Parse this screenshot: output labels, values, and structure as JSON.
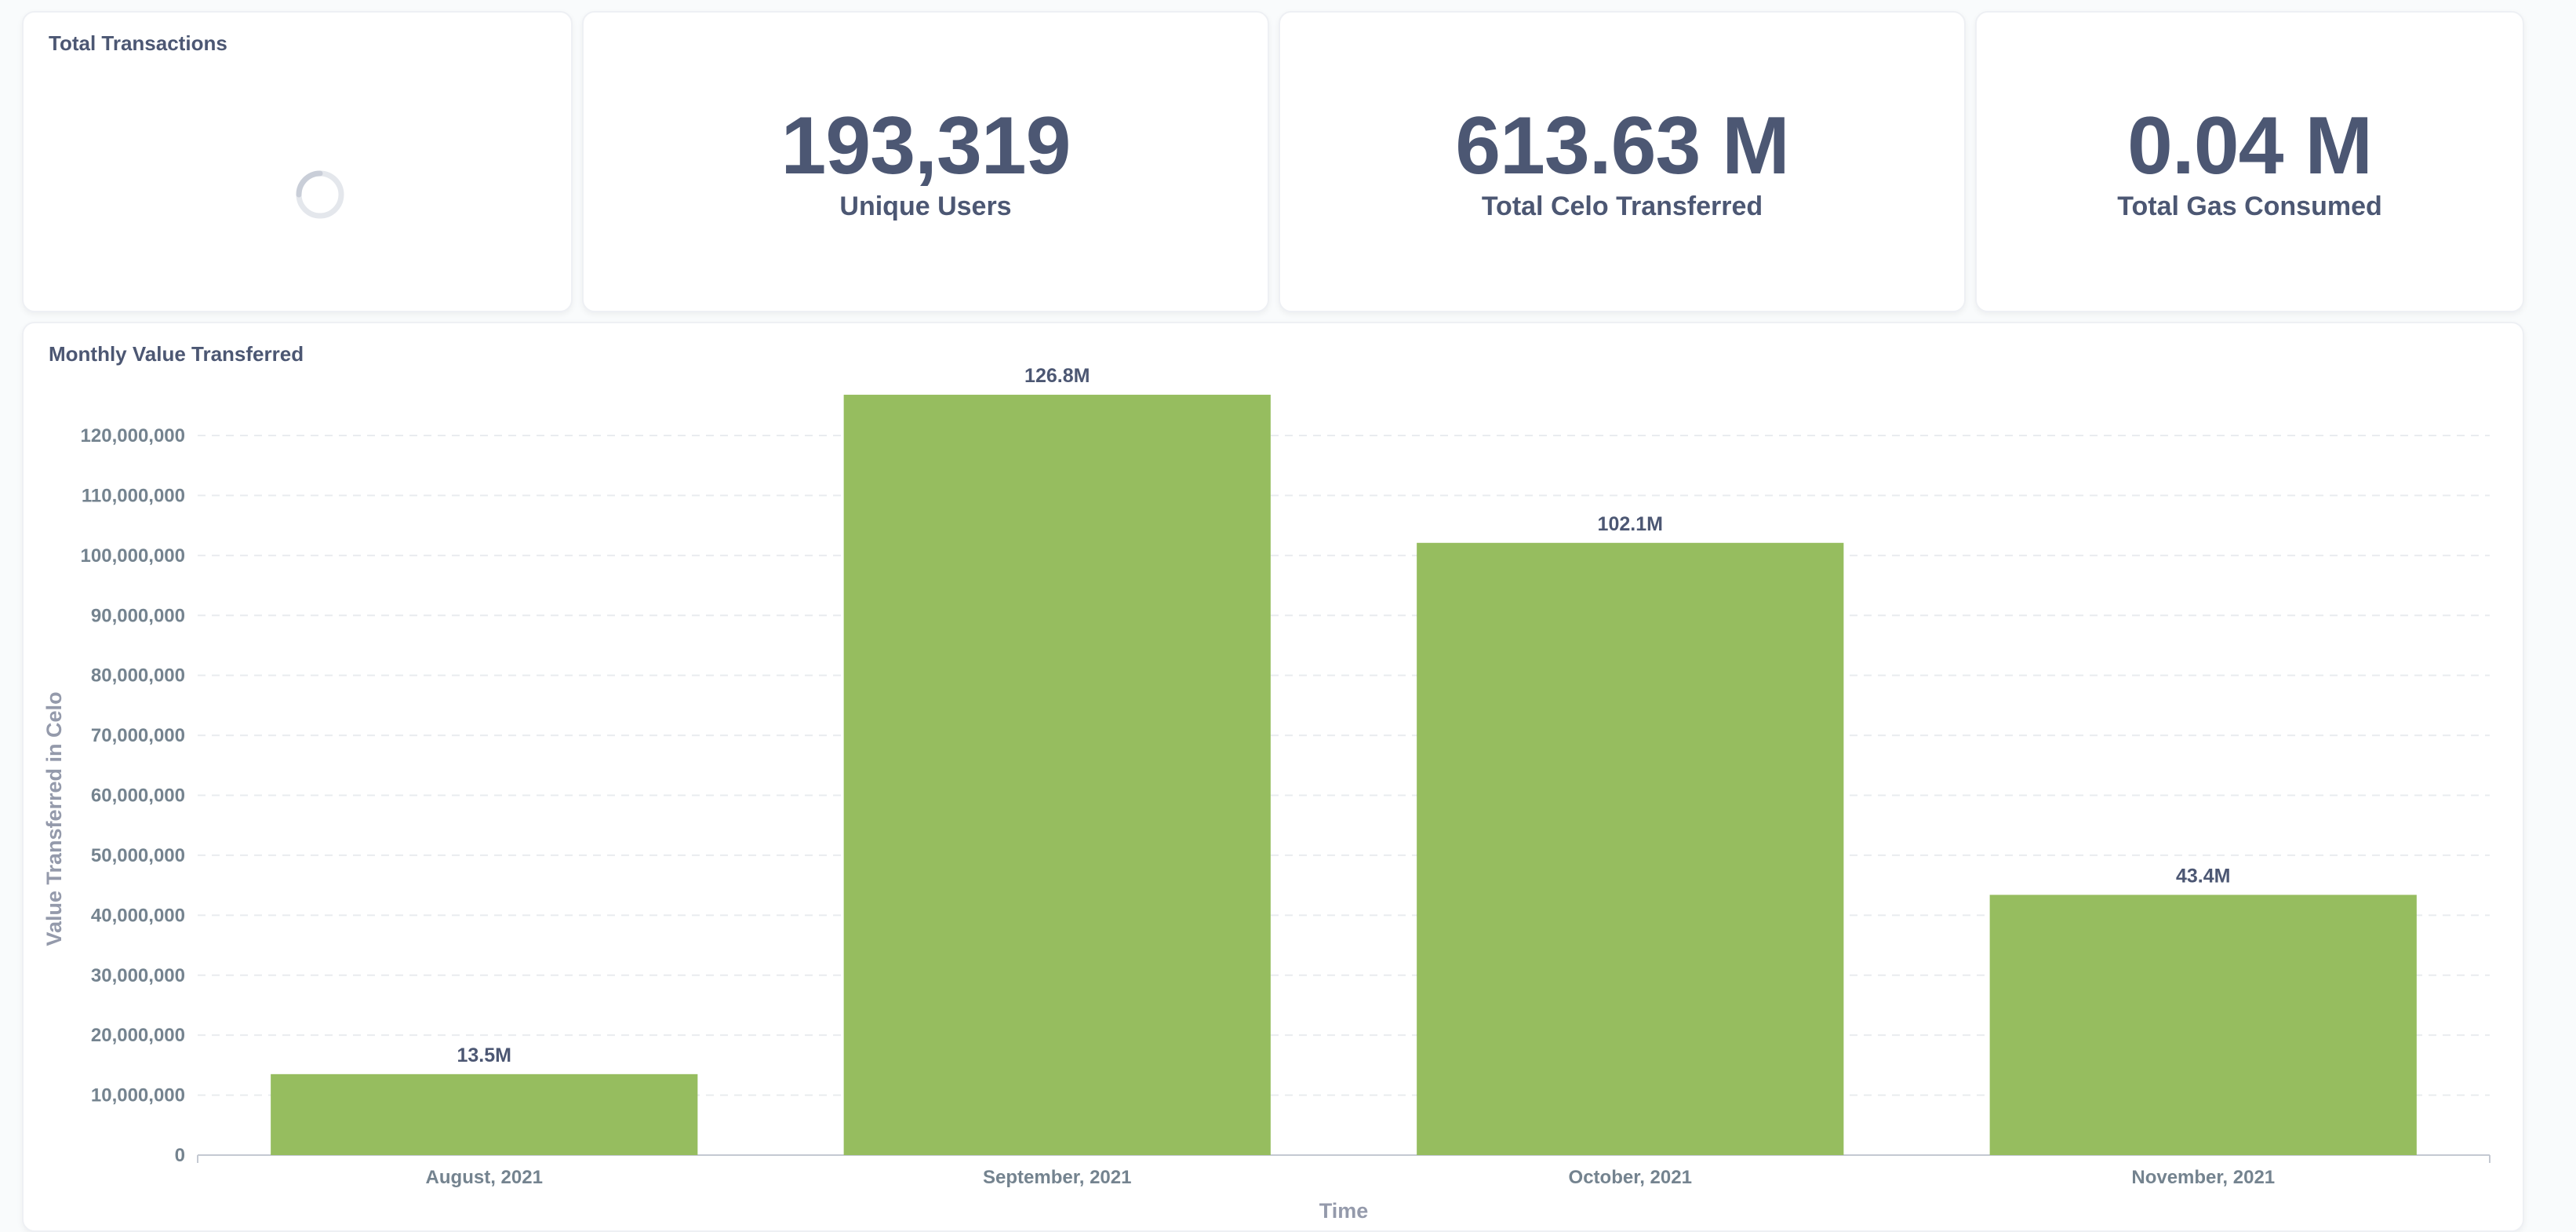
{
  "cards": {
    "total_transactions": {
      "title": "Total Transactions"
    },
    "unique_users": {
      "value": "193,319",
      "label": "Unique Users"
    },
    "total_celo": {
      "value": "613.63 M",
      "label": "Total Celo Transferred"
    },
    "total_gas": {
      "value": "0.04 M",
      "label": "Total Gas Consumed"
    }
  },
  "chart_card": {
    "title": "Monthly Value Transferred"
  },
  "colors": {
    "bar": "#96bd5f",
    "text": "#4c5773",
    "muted": "#74838f",
    "grid": "#e9ecef"
  },
  "chart_data": {
    "type": "bar",
    "title": "Monthly Value Transferred",
    "xlabel": "Time",
    "ylabel": "Value Transferred in Celo",
    "categories": [
      "August, 2021",
      "September, 2021",
      "October, 2021",
      "November, 2021"
    ],
    "values": [
      13500000,
      126800000,
      102100000,
      43400000
    ],
    "data_labels": [
      "13.5M",
      "126.8M",
      "102.1M",
      "43.4M"
    ],
    "ylim": [
      0,
      120000000
    ],
    "yticks": [
      0,
      10000000,
      20000000,
      30000000,
      40000000,
      50000000,
      60000000,
      70000000,
      80000000,
      90000000,
      100000000,
      110000000,
      120000000
    ],
    "ytick_labels": [
      "0",
      "10,000,000",
      "20,000,000",
      "30,000,000",
      "40,000,000",
      "50,000,000",
      "60,000,000",
      "70,000,000",
      "80,000,000",
      "90,000,000",
      "100,000,000",
      "110,000,000",
      "120,000,000"
    ],
    "grid": true,
    "legend": "none"
  }
}
